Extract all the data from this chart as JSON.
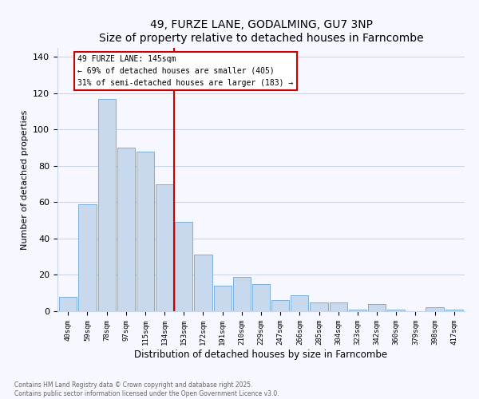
{
  "title": "49, FURZE LANE, GODALMING, GU7 3NP",
  "subtitle": "Size of property relative to detached houses in Farncombe",
  "xlabel": "Distribution of detached houses by size in Farncombe",
  "ylabel": "Number of detached properties",
  "categories": [
    "40sqm",
    "59sqm",
    "78sqm",
    "97sqm",
    "115sqm",
    "134sqm",
    "153sqm",
    "172sqm",
    "191sqm",
    "210sqm",
    "229sqm",
    "247sqm",
    "266sqm",
    "285sqm",
    "304sqm",
    "323sqm",
    "342sqm",
    "360sqm",
    "379sqm",
    "398sqm",
    "417sqm"
  ],
  "values": [
    8,
    59,
    117,
    90,
    88,
    70,
    49,
    31,
    14,
    19,
    15,
    6,
    9,
    5,
    5,
    1,
    4,
    1,
    0,
    2,
    1
  ],
  "bar_color": "#c8d9ee",
  "bar_edge_color": "#7aafda",
  "vline_color": "#cc0000",
  "annotation_title": "49 FURZE LANE: 145sqm",
  "annotation_line1": "← 69% of detached houses are smaller (405)",
  "annotation_line2": "31% of semi-detached houses are larger (183) →",
  "annotation_box_color": "#ffffff",
  "annotation_box_edge": "#cc0000",
  "ylim": [
    0,
    145
  ],
  "yticks": [
    0,
    20,
    40,
    60,
    80,
    100,
    120,
    140
  ],
  "footer_line1": "Contains HM Land Registry data © Crown copyright and database right 2025.",
  "footer_line2": "Contains public sector information licensed under the Open Government Licence v3.0.",
  "bg_color": "#f7f7ff",
  "grid_color": "#c8d4e8"
}
